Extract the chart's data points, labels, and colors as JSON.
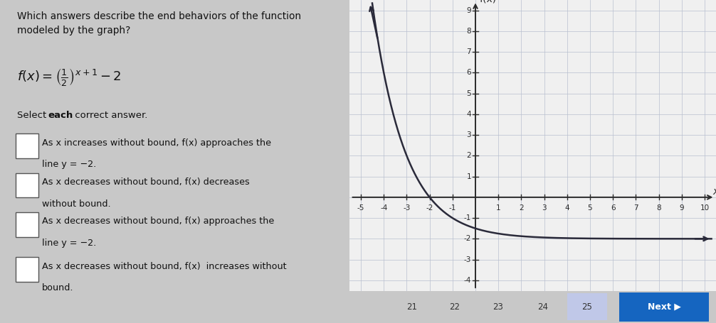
{
  "title_text": "Which answers describe the end behaviors of the function\nmodeled by the graph?",
  "select_label_normal": "Select ",
  "select_label_bold": "each",
  "select_label_end": " correct answer.",
  "options": [
    [
      "As x increases without bound, f(x) approaches the",
      "line y = −2."
    ],
    [
      "As x decreases without bound, f(x) decreases",
      "without bound."
    ],
    [
      "As x decreases without bound, f(x) approaches the",
      "line y = −2."
    ],
    [
      "As x decreases without bound, f(x)  increases without",
      "bound."
    ]
  ],
  "bg_color": "#c8c8c8",
  "left_panel_bg": "#e2e2e2",
  "graph_bg": "#f0f0f0",
  "curve_color": "#2a2a3a",
  "grid_color": "#b8bfd0",
  "axis_color": "#2a2a2a",
  "checkbox_edge_color": "#555555",
  "text_color": "#111111",
  "x_min": -5,
  "x_max": 10,
  "y_min": -4,
  "y_max": 9,
  "nav_numbers": [
    "21",
    "22",
    "23",
    "24",
    "25"
  ],
  "nav_bg": "#c8c8c8",
  "nav_highlight_color": "#c0c8e8",
  "next_btn_color": "#1565c0",
  "nav_text_color": "#333333"
}
